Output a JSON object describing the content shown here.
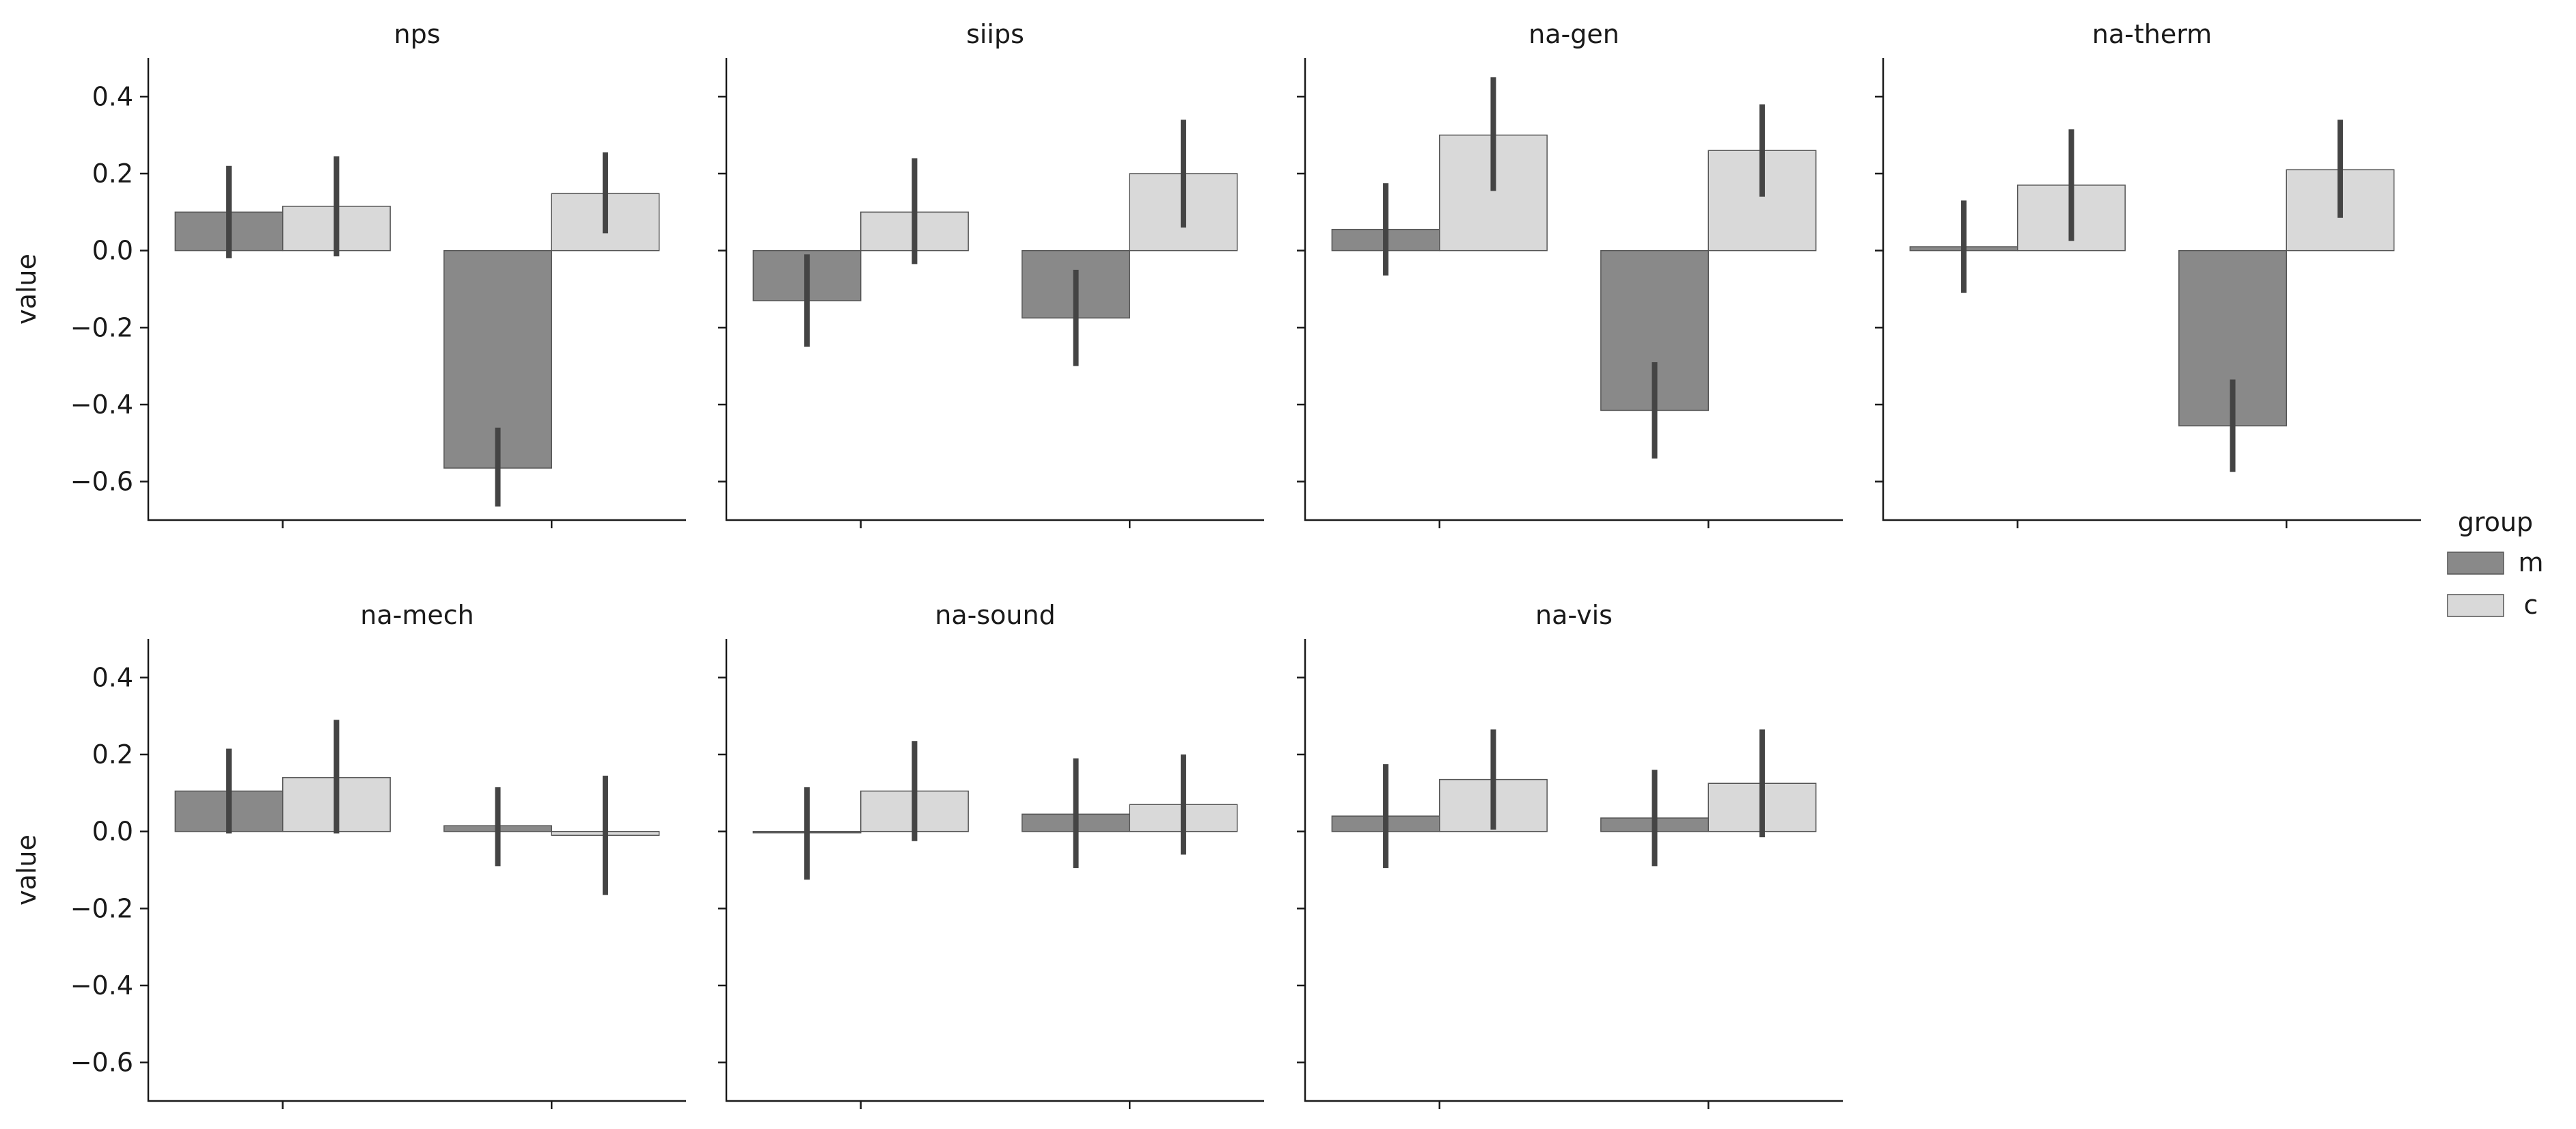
{
  "chart_data": [
    {
      "type": "bar",
      "title": "nps",
      "xlabel": "",
      "ylabel": "value",
      "categories": [
        "",
        ""
      ],
      "ylim": [
        -0.7,
        0.5
      ],
      "yticks": [
        "0.4",
        "0.2",
        "0.0",
        "−0.2",
        "−0.4",
        "−0.6"
      ],
      "grid": false,
      "series": [
        {
          "name": "m",
          "values": [
            0.1,
            -0.565
          ],
          "err_low": [
            -0.02,
            -0.665
          ],
          "err_high": [
            0.22,
            -0.46
          ]
        },
        {
          "name": "c",
          "values": [
            0.115,
            0.148
          ],
          "err_low": [
            -0.015,
            0.045
          ],
          "err_high": [
            0.245,
            0.255
          ]
        }
      ]
    },
    {
      "type": "bar",
      "title": "siips",
      "xlabel": "",
      "ylabel": "",
      "categories": [
        "",
        ""
      ],
      "ylim": [
        -0.7,
        0.5
      ],
      "grid": false,
      "series": [
        {
          "name": "m",
          "values": [
            -0.13,
            -0.175
          ],
          "err_low": [
            -0.25,
            -0.3
          ],
          "err_high": [
            -0.01,
            -0.05
          ]
        },
        {
          "name": "c",
          "values": [
            0.1,
            0.2
          ],
          "err_low": [
            -0.035,
            0.06
          ],
          "err_high": [
            0.24,
            0.34
          ]
        }
      ]
    },
    {
      "type": "bar",
      "title": "na-gen",
      "xlabel": "",
      "ylabel": "",
      "categories": [
        "",
        ""
      ],
      "ylim": [
        -0.7,
        0.5
      ],
      "grid": false,
      "series": [
        {
          "name": "m",
          "values": [
            0.055,
            -0.415
          ],
          "err_low": [
            -0.065,
            -0.54
          ],
          "err_high": [
            0.175,
            -0.29
          ]
        },
        {
          "name": "c",
          "values": [
            0.3,
            0.26
          ],
          "err_low": [
            0.155,
            0.14
          ],
          "err_high": [
            0.45,
            0.38
          ]
        }
      ]
    },
    {
      "type": "bar",
      "title": "na-therm",
      "xlabel": "",
      "ylabel": "",
      "categories": [
        "",
        ""
      ],
      "ylim": [
        -0.7,
        0.5
      ],
      "grid": false,
      "series": [
        {
          "name": "m",
          "values": [
            0.01,
            -0.455
          ],
          "err_low": [
            -0.11,
            -0.575
          ],
          "err_high": [
            0.13,
            -0.335
          ]
        },
        {
          "name": "c",
          "values": [
            0.17,
            0.21
          ],
          "err_low": [
            0.025,
            0.085
          ],
          "err_high": [
            0.315,
            0.34
          ]
        }
      ]
    },
    {
      "type": "bar",
      "title": "na-mech",
      "xlabel": "",
      "ylabel": "value",
      "categories": [
        "",
        ""
      ],
      "ylim": [
        -0.7,
        0.5
      ],
      "yticks": [
        "0.4",
        "0.2",
        "0.0",
        "−0.2",
        "−0.4",
        "−0.6"
      ],
      "grid": false,
      "series": [
        {
          "name": "m",
          "values": [
            0.105,
            0.015
          ],
          "err_low": [
            -0.005,
            -0.09
          ],
          "err_high": [
            0.215,
            0.115
          ]
        },
        {
          "name": "c",
          "values": [
            0.14,
            -0.01
          ],
          "err_low": [
            -0.005,
            -0.165
          ],
          "err_high": [
            0.29,
            0.145
          ]
        }
      ]
    },
    {
      "type": "bar",
      "title": "na-sound",
      "xlabel": "",
      "ylabel": "",
      "categories": [
        "",
        ""
      ],
      "ylim": [
        -0.7,
        0.5
      ],
      "grid": false,
      "series": [
        {
          "name": "m",
          "values": [
            -0.003,
            0.045
          ],
          "err_low": [
            -0.125,
            -0.095
          ],
          "err_high": [
            0.115,
            0.19
          ]
        },
        {
          "name": "c",
          "values": [
            0.105,
            0.07
          ],
          "err_low": [
            -0.025,
            -0.06
          ],
          "err_high": [
            0.235,
            0.2
          ]
        }
      ]
    },
    {
      "type": "bar",
      "title": "na-vis",
      "xlabel": "",
      "ylabel": "",
      "categories": [
        "",
        ""
      ],
      "ylim": [
        -0.7,
        0.5
      ],
      "grid": false,
      "series": [
        {
          "name": "m",
          "values": [
            0.04,
            0.035
          ],
          "err_low": [
            -0.095,
            -0.09
          ],
          "err_high": [
            0.175,
            0.16
          ]
        },
        {
          "name": "c",
          "values": [
            0.135,
            0.125
          ],
          "err_low": [
            0.005,
            -0.015
          ],
          "err_high": [
            0.265,
            0.265
          ]
        }
      ]
    }
  ],
  "legend": {
    "title": "group",
    "placement": "right",
    "items": [
      {
        "label": "m",
        "color": "#898989"
      },
      {
        "label": "c",
        "color": "#d9d9d9"
      }
    ]
  },
  "colors": {
    "m": "#898989",
    "c": "#d9d9d9",
    "bar_edge": "#555555",
    "error_bar": "#444444",
    "axis": "#1a1a1a"
  }
}
